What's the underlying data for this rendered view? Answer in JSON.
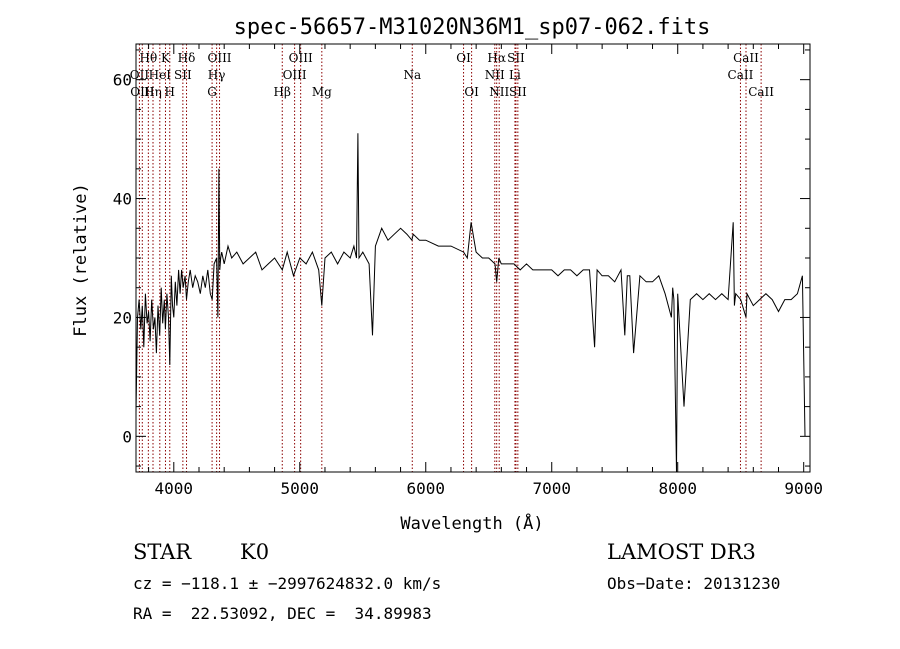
{
  "chart_data": {
    "type": "line",
    "title": "spec-56657-M31020N36M1_sp07-062.fits",
    "xlabel": "Wavelength (Å)",
    "ylabel": "Flux (relative)",
    "xlim": [
      3700,
      9050
    ],
    "ylim": [
      -6,
      66
    ],
    "xticks": [
      4000,
      5000,
      6000,
      7000,
      8000,
      9000
    ],
    "yticks": [
      0,
      20,
      40,
      60
    ],
    "grid": false,
    "line_color": "#000000",
    "marker_color": "#8b0000",
    "series": [
      {
        "x": [
          3700,
          3712,
          3725,
          3738,
          3750,
          3762,
          3775,
          3788,
          3800,
          3812,
          3825,
          3838,
          3850,
          3862,
          3875,
          3888,
          3900,
          3912,
          3925,
          3933,
          3945,
          3958,
          3968,
          3980,
          3990,
          4000,
          4012,
          4025,
          4038,
          4050,
          4062,
          4075,
          4090,
          4101,
          4115,
          4130,
          4150,
          4170,
          4190,
          4210,
          4230,
          4250,
          4270,
          4290,
          4305,
          4320,
          4340,
          4350,
          4358,
          4365,
          4372,
          4380,
          4400,
          4430,
          4460,
          4500,
          4550,
          4600,
          4650,
          4700,
          4750,
          4800,
          4861,
          4900,
          4950,
          5000,
          5050,
          5100,
          5150,
          5175,
          5200,
          5250,
          5300,
          5350,
          5400,
          5430,
          5450,
          5461,
          5470,
          5500,
          5550,
          5577,
          5600,
          5650,
          5700,
          5750,
          5800,
          5850,
          5890,
          5900,
          5950,
          6000,
          6100,
          6200,
          6300,
          6330,
          6360,
          6400,
          6450,
          6500,
          6550,
          6563,
          6580,
          6600,
          6650,
          6700,
          6750,
          6800,
          6850,
          6900,
          6950,
          7000,
          7050,
          7100,
          7150,
          7200,
          7250,
          7300,
          7340,
          7360,
          7400,
          7450,
          7500,
          7550,
          7580,
          7600,
          7620,
          7650,
          7700,
          7750,
          7800,
          7850,
          7900,
          7950,
          7960,
          7970,
          7990,
          8000,
          8050,
          8100,
          8150,
          8200,
          8250,
          8300,
          8350,
          8400,
          8440,
          8450,
          8460,
          8500,
          8542,
          8550,
          8600,
          8650,
          8700,
          8750,
          8800,
          8850,
          8900,
          8950,
          8990,
          9010
        ],
        "y": [
          4,
          20,
          23,
          18,
          22,
          15,
          24,
          19,
          21,
          16,
          23,
          18,
          20,
          14,
          22,
          17,
          25,
          19,
          23,
          18,
          24,
          20,
          12,
          27,
          22,
          20,
          26,
          22,
          28,
          24,
          28,
          25,
          27,
          23,
          26,
          28,
          25,
          27,
          26,
          24,
          27,
          25,
          28,
          24,
          23,
          29,
          30,
          20,
          45,
          28,
          30,
          31,
          29,
          32,
          30,
          31,
          29,
          30,
          31,
          28,
          29,
          30,
          28,
          31,
          27,
          30,
          29,
          31,
          28,
          22,
          30,
          31,
          29,
          31,
          30,
          32,
          30,
          51,
          30,
          31,
          29,
          17,
          32,
          35,
          33,
          34,
          35,
          34,
          33,
          34,
          33,
          33,
          32,
          32,
          31,
          30,
          36,
          31,
          30,
          30,
          29,
          26,
          30,
          29,
          29,
          29,
          28,
          29,
          28,
          28,
          28,
          28,
          27,
          28,
          28,
          27,
          28,
          28,
          15,
          28,
          27,
          27,
          26,
          28,
          17,
          27,
          27,
          14,
          27,
          26,
          26,
          27,
          24,
          20,
          25,
          23,
          -6,
          24,
          5,
          23,
          24,
          23,
          24,
          23,
          24,
          23,
          36,
          22,
          24,
          23,
          20,
          24,
          22,
          23,
          24,
          23,
          21,
          23,
          23,
          24,
          27,
          0
        ]
      }
    ],
    "lines": [
      {
        "label": "Hθ",
        "x": 3798,
        "row": 1
      },
      {
        "label": "OII",
        "x": 3727,
        "row": 2
      },
      {
        "label": "OIII",
        "x": 3750,
        "row": 3
      },
      {
        "label": "Hη",
        "x": 3835,
        "row": 3
      },
      {
        "label": "HeI",
        "x": 3889,
        "row": 2
      },
      {
        "label": "K",
        "x": 3934,
        "row": 1
      },
      {
        "label": "H",
        "x": 3968,
        "row": 3
      },
      {
        "label": "SII",
        "x": 4072,
        "row": 2
      },
      {
        "label": "Hδ",
        "x": 4101,
        "row": 1
      },
      {
        "label": "G",
        "x": 4304,
        "row": 3
      },
      {
        "label": "OIII",
        "x": 4363,
        "row": 1
      },
      {
        "label": "Hγ",
        "x": 4340,
        "row": 2
      },
      {
        "label": "Hβ",
        "x": 4861,
        "row": 3
      },
      {
        "label": "OIII",
        "x": 4959,
        "row": 2
      },
      {
        "label": "OIII",
        "x": 5007,
        "row": 1
      },
      {
        "label": "Mg",
        "x": 5175,
        "row": 3
      },
      {
        "label": "Na",
        "x": 5893,
        "row": 2
      },
      {
        "label": "OI",
        "x": 6300,
        "row": 1
      },
      {
        "label": "OI",
        "x": 6364,
        "row": 3
      },
      {
        "label": "Hα",
        "x": 6563,
        "row": 1
      },
      {
        "label": "NII",
        "x": 6548,
        "row": 2
      },
      {
        "label": "NII",
        "x": 6583,
        "row": 3
      },
      {
        "label": "SII",
        "x": 6716,
        "row": 1
      },
      {
        "label": "Li",
        "x": 6708,
        "row": 2
      },
      {
        "label": "SII",
        "x": 6731,
        "row": 3
      },
      {
        "label": "CaII",
        "x": 8542,
        "row": 1
      },
      {
        "label": "CaII",
        "x": 8498,
        "row": 2
      },
      {
        "label": "CaII",
        "x": 8662,
        "row": 3
      }
    ]
  },
  "footer": {
    "class_label": "STAR",
    "subclass": "K0",
    "survey": "LAMOST DR3",
    "cz": "cz = −118.1 ± −2997624832.0 km/s",
    "obs_date": "Obs−Date: 20131230",
    "coords": "RA =  22.53092, DEC =  34.89983"
  }
}
